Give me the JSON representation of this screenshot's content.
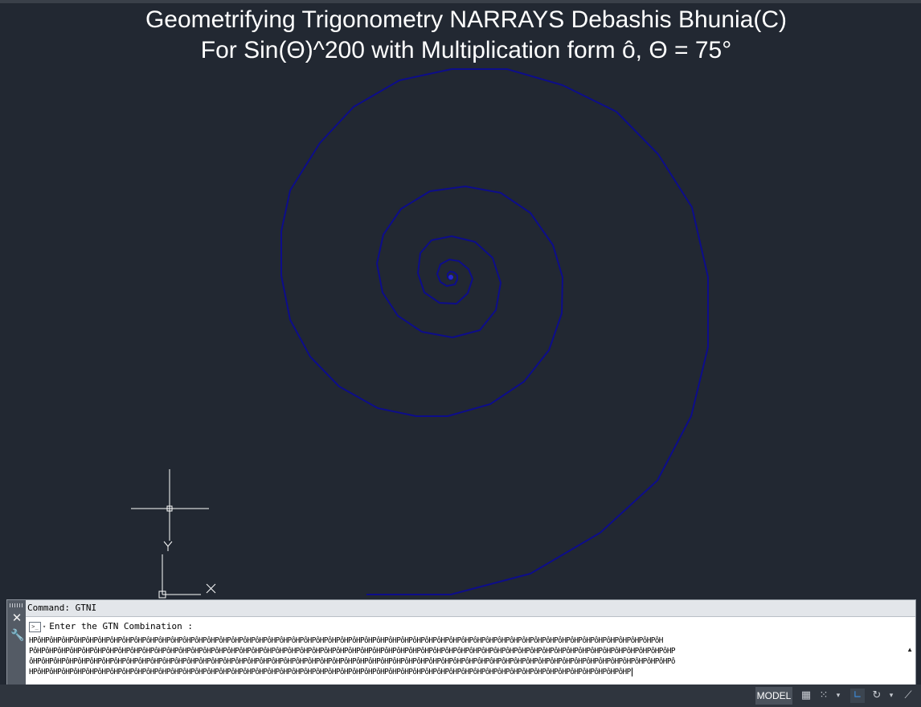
{
  "drawing": {
    "title_line_1": "Geometrifying Trigonometry NARRAYS Debashis Bhunia(C)",
    "title_line_2": "For Sin(Θ)^200 with Multiplication form ô, Θ = 75°",
    "spiral_color": "#0d0d8a",
    "ucs_y_label": "Y",
    "ucs_x_label": "X"
  },
  "command_window": {
    "history": "Command: GTNI",
    "prompt": "Enter the GTN Combination :",
    "input_lines": [
      "HPôHPôHPôHPôHPôHPôHPôHPôHPôHPôHPôHPôHPôHPôHPôHPôHPôHPôHPôHPôHPôHPôHPôHPôHPôHPôHPôHPôHPôHPôHPôHPôHPôHPôHPôHPôHPôHPôHPôHPôHPôHPôHPôHPôHPôHPôHPôHPôHPôHPôHPôHPôH",
      "PôHPôHPôHPôHPôHPôHPôHPôHPôHPôHPôHPôHPôHPôHPôHPôHPôHPôHPôHPôHPôHPôHPôHPôHPôHPôHPôHPôHPôHPôHPôHPôHPôHPôHPôHPôHPôHPôHPôHPôHPôHPôHPôHPôHPôHPôHPôHPôHPôHPôHPôHPôHPôHP",
      "ôHPôHPôHPôHPôHPôHPôHPôHPôHPôHPôHPôHPôHPôHPôHPôHPôHPôHPôHPôHPôHPôHPôHPôHPôHPôHPôHPôHPôHPôHPôHPôHPôHPôHPôHPôHPôHPôHPôHPôHPôHPôHPôHPôHPôHPôHPôHPôHPôHPôHPôHPôHPôHPô",
      "HPôHPôHPôHPôHPôHPôHPôHPôHPôHPôHPôHPôHPôHPôHPôHPôHPôHPôHPôHPôHPôHPôHPôHPôHPôHPôHPôHPôHPôHPôHPôHPôHPôHPôHPôHPôHPôHPôHPôHPôHPôHPôHPôHPôHPôHPôHPôHPôHPôHP"
    ],
    "prompt_icon": ">_",
    "close_icon": "✕",
    "customize_icon": "🔧",
    "scroll_icon": "▲"
  },
  "status_bar": {
    "model_label": "MODEL",
    "icons": [
      "grid-display-icon",
      "snap-mode-icon",
      "dropdown-arrow-icon",
      "ortho-mode-icon",
      "polar-tracking-icon",
      "dropdown-arrow-icon",
      "isodraft-icon"
    ]
  }
}
